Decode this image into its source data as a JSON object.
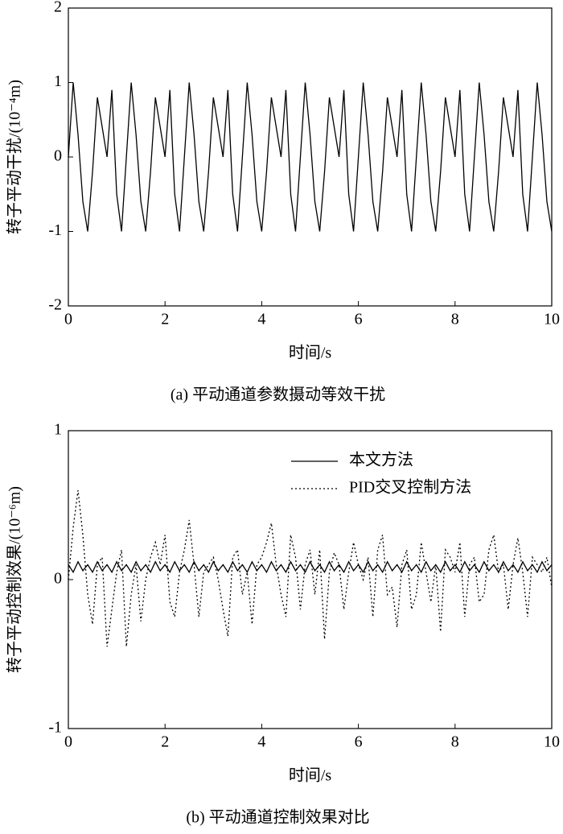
{
  "chart_data": [
    {
      "type": "line",
      "title": "(a) 平动通道参数摄动等效干扰",
      "x_label": "时间/s",
      "y_label": "转子平动干扰/(10⁻⁴m)",
      "xlim": [
        0,
        10
      ],
      "xticks": [
        0,
        2,
        4,
        6,
        8,
        10
      ],
      "ylim": [
        -2,
        2
      ],
      "yticks": [
        -2,
        -1,
        0,
        1,
        2
      ],
      "x": [
        0,
        0.1,
        0.2,
        0.3,
        0.4,
        0.5,
        0.6,
        0.7,
        0.8,
        0.9,
        1,
        1.1,
        1.2,
        1.3,
        1.4,
        1.5,
        1.6,
        1.7,
        1.8,
        1.9,
        2,
        2.1,
        2.2,
        2.3,
        2.4,
        2.5,
        2.6,
        2.7,
        2.8,
        2.9,
        3,
        3.1,
        3.2,
        3.3,
        3.4,
        3.5,
        3.6,
        3.7,
        3.8,
        3.9,
        4,
        4.1,
        4.2,
        4.3,
        4.4,
        4.5,
        4.6,
        4.7,
        4.8,
        4.9,
        5,
        5.1,
        5.2,
        5.3,
        5.4,
        5.5,
        5.6,
        5.7,
        5.8,
        5.9,
        6,
        6.1,
        6.2,
        6.3,
        6.4,
        6.5,
        6.6,
        6.7,
        6.8,
        6.9,
        7,
        7.1,
        7.2,
        7.3,
        7.4,
        7.5,
        7.6,
        7.7,
        7.8,
        7.9,
        8,
        8.1,
        8.2,
        8.3,
        8.4,
        8.5,
        8.6,
        8.7,
        8.8,
        8.9,
        9,
        9.1,
        9.2,
        9.3,
        9.4,
        9.5,
        9.6,
        9.7,
        9.8,
        9.9,
        10
      ],
      "series": [
        {
          "color": "#000000",
          "dash": "solid",
          "values": [
            0,
            1.0,
            0.3,
            -0.6,
            -1.0,
            -0.2,
            0.8,
            0.4,
            0,
            0.9,
            -0.5,
            -1.0,
            0,
            1.0,
            0.3,
            -0.6,
            -1.0,
            -0.2,
            0.8,
            0.4,
            0,
            0.9,
            -0.5,
            -1.0,
            0,
            1.0,
            0.3,
            -0.6,
            -1.0,
            -0.2,
            0.8,
            0.4,
            0,
            0.9,
            -0.5,
            -1.0,
            0,
            1.0,
            0.3,
            -0.6,
            -1.0,
            -0.2,
            0.8,
            0.4,
            0,
            0.9,
            -0.5,
            -1.0,
            0,
            1.0,
            0.3,
            -0.6,
            -1.0,
            -0.2,
            0.8,
            0.4,
            0,
            0.9,
            -0.5,
            -1.0,
            0,
            1.0,
            0.3,
            -0.6,
            -1.0,
            -0.2,
            0.8,
            0.4,
            0,
            0.9,
            -0.5,
            -1.0,
            0,
            1.0,
            0.3,
            -0.6,
            -1.0,
            -0.2,
            0.8,
            0.4,
            0,
            0.9,
            -0.5,
            -1.0,
            0,
            1.0,
            0.3,
            -0.6,
            -1.0,
            -0.2,
            0.8,
            0.4,
            0,
            0.9,
            -0.5,
            -1.0,
            0,
            1.0,
            0.3,
            -0.6,
            -1.0
          ]
        }
      ]
    },
    {
      "type": "line",
      "title": "(b) 平动通道控制效果对比",
      "x_label": "时间/s",
      "y_label": "转子平动控制效果/(10⁻⁶m)",
      "xlim": [
        0,
        10
      ],
      "xticks": [
        0,
        2,
        4,
        6,
        8,
        10
      ],
      "ylim": [
        -1,
        1
      ],
      "yticks": [
        -1,
        0,
        1
      ],
      "legend": "upper right",
      "x": [
        0,
        0.1,
        0.2,
        0.3,
        0.4,
        0.5,
        0.6,
        0.7,
        0.8,
        0.9,
        1,
        1.1,
        1.2,
        1.3,
        1.4,
        1.5,
        1.6,
        1.7,
        1.8,
        1.9,
        2,
        2.1,
        2.2,
        2.3,
        2.4,
        2.5,
        2.6,
        2.7,
        2.8,
        2.9,
        3,
        3.1,
        3.2,
        3.3,
        3.4,
        3.5,
        3.6,
        3.7,
        3.8,
        3.9,
        4,
        4.1,
        4.2,
        4.3,
        4.4,
        4.5,
        4.6,
        4.7,
        4.8,
        4.9,
        5,
        5.1,
        5.2,
        5.3,
        5.4,
        5.5,
        5.6,
        5.7,
        5.8,
        5.9,
        6,
        6.1,
        6.2,
        6.3,
        6.4,
        6.5,
        6.6,
        6.7,
        6.8,
        6.9,
        7,
        7.1,
        7.2,
        7.3,
        7.4,
        7.5,
        7.6,
        7.7,
        7.8,
        7.9,
        8,
        8.1,
        8.2,
        8.3,
        8.4,
        8.5,
        8.6,
        8.7,
        8.8,
        8.9,
        9,
        9.1,
        9.2,
        9.3,
        9.4,
        9.5,
        9.6,
        9.7,
        9.8,
        9.9,
        10
      ],
      "series": [
        {
          "name": "本文方法",
          "color": "#000000",
          "dash": "solid",
          "values": [
            0.1,
            0.05,
            0.12,
            0.06,
            0.1,
            0.05,
            0.12,
            0.06,
            0.1,
            0.05,
            0.12,
            0.06,
            0.1,
            0.05,
            0.12,
            0.06,
            0.1,
            0.05,
            0.12,
            0.06,
            0.1,
            0.05,
            0.12,
            0.06,
            0.1,
            0.05,
            0.12,
            0.06,
            0.1,
            0.05,
            0.12,
            0.06,
            0.1,
            0.05,
            0.12,
            0.06,
            0.1,
            0.05,
            0.12,
            0.06,
            0.1,
            0.05,
            0.12,
            0.06,
            0.1,
            0.05,
            0.12,
            0.06,
            0.1,
            0.05,
            0.12,
            0.06,
            0.1,
            0.05,
            0.12,
            0.06,
            0.1,
            0.05,
            0.12,
            0.06,
            0.1,
            0.05,
            0.12,
            0.06,
            0.1,
            0.05,
            0.12,
            0.06,
            0.1,
            0.05,
            0.12,
            0.06,
            0.1,
            0.05,
            0.12,
            0.06,
            0.1,
            0.05,
            0.12,
            0.06,
            0.1,
            0.05,
            0.12,
            0.06,
            0.1,
            0.05,
            0.12,
            0.06,
            0.1,
            0.05,
            0.12,
            0.06,
            0.1,
            0.05,
            0.12,
            0.06,
            0.1,
            0.05,
            0.12,
            0.06,
            0.1
          ]
        },
        {
          "name": "PID交叉控制方法",
          "color": "#000000",
          "dash": "dotted",
          "values": [
            0,
            0.35,
            0.6,
            0.3,
            -0.1,
            -0.3,
            0.1,
            0.15,
            -0.45,
            -0.2,
            0.05,
            0.2,
            -0.45,
            -0.1,
            0.1,
            -0.28,
            0,
            0.15,
            0.25,
            0.1,
            0.3,
            -0.15,
            -0.25,
            0.05,
            0.2,
            0.4,
            0.1,
            -0.25,
            0.05,
            0.1,
            0.15,
            0,
            -0.2,
            -0.38,
            0.15,
            0.2,
            -0.1,
            0.05,
            -0.3,
            0.1,
            0.15,
            0.25,
            0.38,
            0.1,
            -0.1,
            -0.25,
            0.3,
            0.15,
            -0.2,
            0.1,
            0.2,
            -0.1,
            0.2,
            -0.4,
            0.05,
            0.18,
            0.1,
            -0.2,
            0.05,
            0.25,
            0.1,
            0,
            0.15,
            -0.25,
            0.2,
            0.3,
            -0.1,
            -0.05,
            -0.32,
            0.1,
            0.2,
            -0.2,
            -0.1,
            0.25,
            0.05,
            -0.15,
            0.1,
            -0.35,
            0.2,
            0.15,
            0.05,
            0.25,
            -0.25,
            0.1,
            0.15,
            -0.15,
            -0.1,
            0.2,
            0.3,
            0.05,
            0.1,
            -0.2,
            0.1,
            0.28,
            0.05,
            -0.25,
            0.15,
            0.1,
            0.05,
            0.15,
            -0.05
          ]
        }
      ]
    }
  ]
}
